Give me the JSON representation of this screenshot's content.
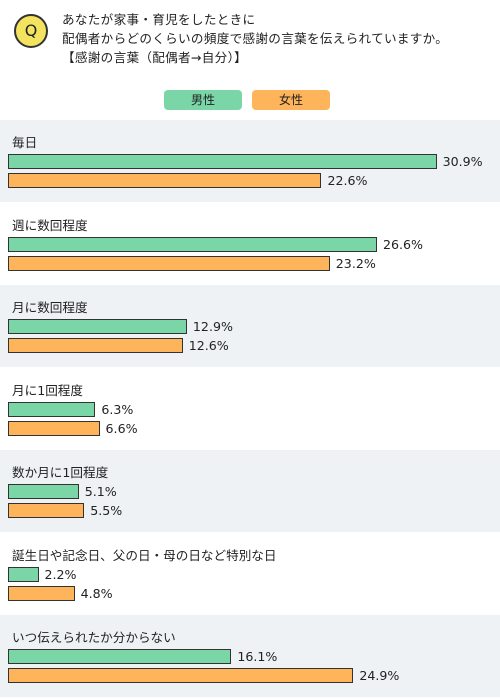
{
  "question": {
    "badge": "Q",
    "lines": [
      "あなたが家事・育児をしたときに",
      "配偶者からどのくらいの頻度で感謝の言葉を伝えられていますか。",
      "【感謝の言葉（配偶者→自分）】"
    ]
  },
  "legend": {
    "male": "男性",
    "female": "女性"
  },
  "colors": {
    "male": "#7ad6a7",
    "female": "#fdb45a",
    "band": "#eef2f5"
  },
  "chart_data": {
    "type": "bar",
    "orientation": "horizontal",
    "categories": [
      "毎日",
      "週に数回程度",
      "月に数回程度",
      "月に1回程度",
      "数か月に1回程度",
      "誕生日や記念日、父の日・母の日など特別な日",
      "いつ伝えられたか分からない"
    ],
    "series": [
      {
        "name": "男性",
        "values": [
          30.9,
          26.6,
          12.9,
          6.3,
          5.1,
          2.2,
          16.1
        ]
      },
      {
        "name": "女性",
        "values": [
          22.6,
          23.2,
          12.6,
          6.6,
          5.5,
          4.8,
          24.9
        ]
      }
    ],
    "unit": "%",
    "legend_position": "top-center"
  }
}
